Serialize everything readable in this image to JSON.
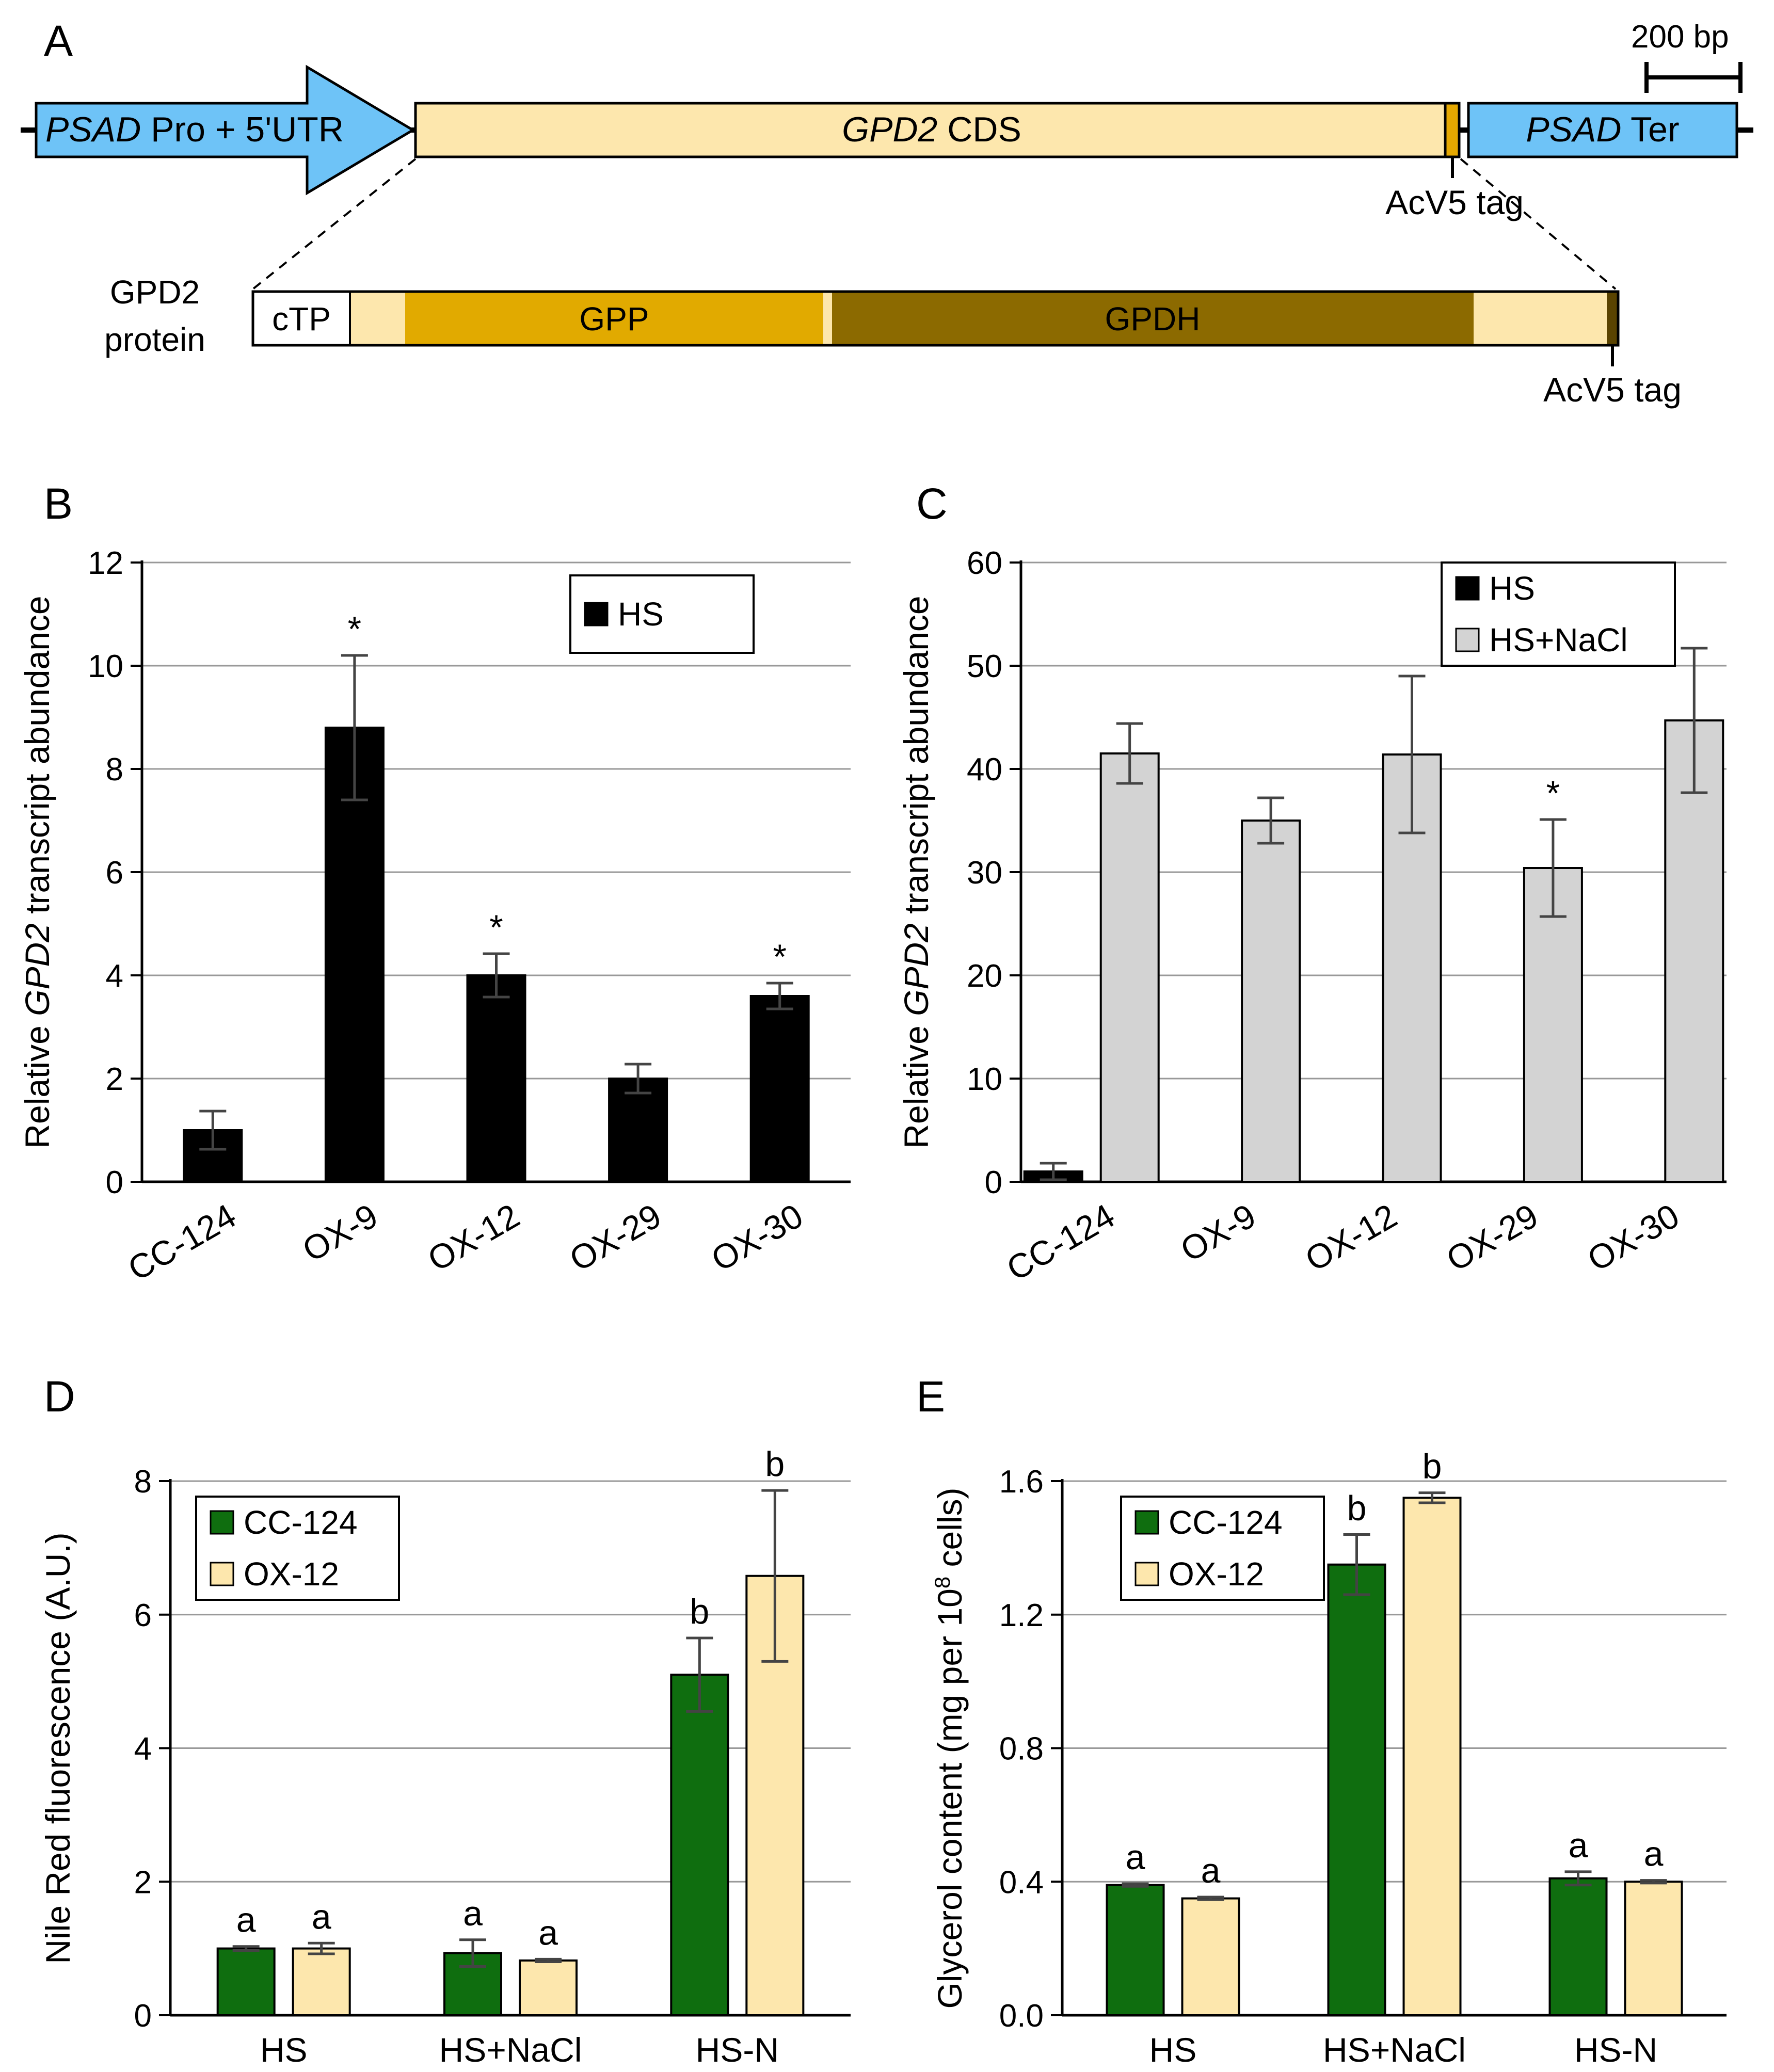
{
  "panel_a": {
    "label": "A",
    "scale_bar_label": "200 bp",
    "promoter_italic": "PSAD",
    "promoter_rest": " Pro + 5'UTR",
    "cds_italic": "GPD2",
    "cds_rest": " CDS",
    "terminator_italic": "PSAD",
    "terminator_rest": " Ter",
    "tag_label": "AcV5 tag",
    "protein_label_line1": "GPD2",
    "protein_label_line2": "protein",
    "ctp_label": "cTP",
    "gpp_label": "GPP",
    "gpdh_label": "GPDH",
    "protein_tag_label": "AcV5 tag",
    "colors": {
      "promoter": "#6ec3f7",
      "cds": "#fde7ad",
      "cds_tag": "#e5a800",
      "gpp": "#e1aa00",
      "gpdh": "#8c6a00",
      "protein_tag": "#5a4300"
    }
  },
  "chart_data": [
    {
      "panel": "B",
      "type": "bar",
      "ylabel_pre": "Relative ",
      "ylabel_italic": "GPD2",
      "ylabel_post": " transcript abundance",
      "categories": [
        "CC-124",
        "OX-9",
        "OX-12",
        "OX-29",
        "OX-30"
      ],
      "ylim": [
        0,
        12
      ],
      "yticks": [
        0,
        2,
        4,
        6,
        8,
        10,
        12
      ],
      "ytick_labels": [
        "0",
        "2",
        "4",
        "6",
        "8",
        "10",
        "12"
      ],
      "grid": true,
      "legend_position": "top-right",
      "series": [
        {
          "name": "HS",
          "color": "#000000",
          "values": [
            1.0,
            8.8,
            4.0,
            2.0,
            3.6
          ],
          "errors": [
            0.37,
            1.4,
            0.42,
            0.28,
            0.25
          ],
          "annotations": [
            "",
            "*",
            "*",
            "",
            "*"
          ]
        }
      ]
    },
    {
      "panel": "C",
      "type": "bar",
      "ylabel_pre": "Relative ",
      "ylabel_italic": "GPD2",
      "ylabel_post": " transcript abundance",
      "categories": [
        "CC-124",
        "OX-9",
        "OX-12",
        "OX-29",
        "OX-30"
      ],
      "ylim": [
        0,
        60
      ],
      "yticks": [
        0,
        10,
        20,
        30,
        40,
        50,
        60
      ],
      "ytick_labels": [
        "0",
        "10",
        "20",
        "30",
        "40",
        "50",
        "60"
      ],
      "grid": true,
      "legend_position": "top-right",
      "series": [
        {
          "name": "HS",
          "color": "#000000",
          "values": [
            1.0,
            null,
            null,
            null,
            null
          ],
          "errors": [
            0.8,
            null,
            null,
            null,
            null
          ],
          "annotations": [
            "",
            "",
            "",
            "",
            ""
          ]
        },
        {
          "name": "HS+NaCl",
          "color": "#d3d3d3",
          "values": [
            41.5,
            35.0,
            41.4,
            30.4,
            44.7
          ],
          "errors": [
            2.9,
            2.2,
            7.6,
            4.7,
            7.0
          ],
          "annotations": [
            "",
            "",
            "",
            "*",
            ""
          ]
        }
      ]
    },
    {
      "panel": "D",
      "type": "bar",
      "ylabel_pre": "Nile Red fluorescence (A.U.)",
      "ylabel_italic": "",
      "ylabel_post": "",
      "categories": [
        "HS",
        "HS+NaCl",
        "HS-N"
      ],
      "ylim": [
        0,
        8
      ],
      "yticks": [
        0,
        2,
        4,
        6,
        8
      ],
      "ytick_labels": [
        "0",
        "2",
        "4",
        "6",
        "8"
      ],
      "grid": true,
      "legend_position": "top-left",
      "series": [
        {
          "name": "CC-124",
          "color": "#0f6e0f",
          "values": [
            1.0,
            0.93,
            5.1
          ],
          "errors": [
            0.03,
            0.2,
            0.55
          ],
          "annotations": [
            "a",
            "a",
            "b"
          ]
        },
        {
          "name": "OX-12",
          "color": "#fde7ad",
          "values": [
            1.0,
            0.82,
            6.58
          ],
          "errors": [
            0.08,
            0.02,
            1.28
          ],
          "annotations": [
            "a",
            "a",
            "b"
          ]
        }
      ]
    },
    {
      "panel": "E",
      "type": "bar",
      "ylabel_pre": "Glycerol content (mg per 10",
      "ylabel_sup": "8",
      "ylabel_post": " cells)",
      "categories": [
        "HS",
        "HS+NaCl",
        "HS-N"
      ],
      "ylim": [
        0,
        1.6
      ],
      "yticks": [
        0,
        0.4,
        0.8,
        1.2,
        1.6
      ],
      "ytick_labels": [
        "0.0",
        "0.4",
        "0.8",
        "1.2",
        "1.6"
      ],
      "grid": true,
      "legend_position": "top-left",
      "series": [
        {
          "name": "CC-124",
          "color": "#0f6e0f",
          "values": [
            0.39,
            1.35,
            0.41
          ],
          "errors": [
            0.004,
            0.09,
            0.02
          ],
          "annotations": [
            "a",
            "b",
            "a"
          ]
        },
        {
          "name": "OX-12",
          "color": "#fde7ad",
          "values": [
            0.35,
            1.55,
            0.4
          ],
          "errors": [
            0.004,
            0.015,
            0.004
          ],
          "annotations": [
            "a",
            "b",
            "a"
          ]
        }
      ]
    }
  ]
}
